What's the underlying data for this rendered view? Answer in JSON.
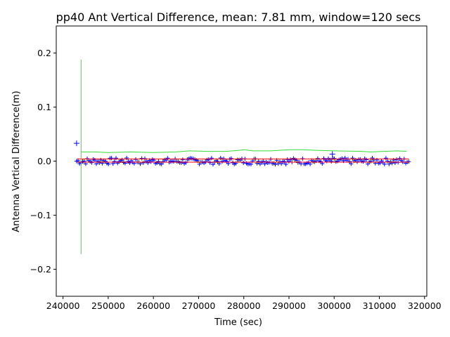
{
  "chart_data": {
    "type": "scatter",
    "title": "pp40 Ant Vertical Difference, mean: 7.81 mm, window=120 secs",
    "xlabel": "Time (sec)",
    "ylabel": "Antenna Vertical Difference(m)",
    "xlim": [
      238500,
      320500
    ],
    "ylim": [
      -0.25,
      0.25
    ],
    "xticks": [
      240000,
      250000,
      260000,
      270000,
      280000,
      290000,
      300000,
      310000,
      320000
    ],
    "xtick_labels": [
      "240000",
      "250000",
      "260000",
      "270000",
      "280000",
      "290000",
      "300000",
      "310000",
      "320000"
    ],
    "yticks": [
      -0.2,
      -0.1,
      0.0,
      0.1,
      0.2
    ],
    "ytick_labels": [
      "−0.2",
      "−0.1",
      "0.0",
      "0.1",
      "0.2"
    ],
    "grid": false,
    "legend": "none",
    "series": [
      {
        "kind": "points",
        "marker": "+",
        "color": "#0000ff",
        "x_start": 243000,
        "x_end": 316500,
        "y_center": 0.0,
        "y_spread": 0.006,
        "outliers": [
          {
            "x": 243000,
            "y": 0.033
          },
          {
            "x": 299600,
            "y": 0.013
          }
        ]
      },
      {
        "kind": "line",
        "color": "#ff0000",
        "x": [
          243000,
          316500
        ],
        "y": [
          0.004,
          0.004
        ]
      },
      {
        "kind": "line",
        "color": "#ff0000",
        "x": [
          243000,
          316500
        ],
        "y": [
          -0.002,
          -0.002
        ]
      },
      {
        "kind": "line",
        "color": "#33dd33",
        "x": [
          244000,
          244000,
          244000,
          247000,
          250000,
          255000,
          260000,
          265000,
          268000,
          272000,
          276000,
          279000,
          280000,
          282000,
          286000,
          290000,
          293000,
          296000,
          300000,
          306000,
          308000,
          311000,
          314000,
          316000
        ],
        "y": [
          -0.172,
          0.188,
          0.017,
          0.017,
          0.016,
          0.017,
          0.016,
          0.017,
          0.019,
          0.018,
          0.018,
          0.02,
          0.021,
          0.019,
          0.019,
          0.021,
          0.021,
          0.02,
          0.019,
          0.018,
          0.017,
          0.018,
          0.019,
          0.018
        ]
      }
    ]
  }
}
